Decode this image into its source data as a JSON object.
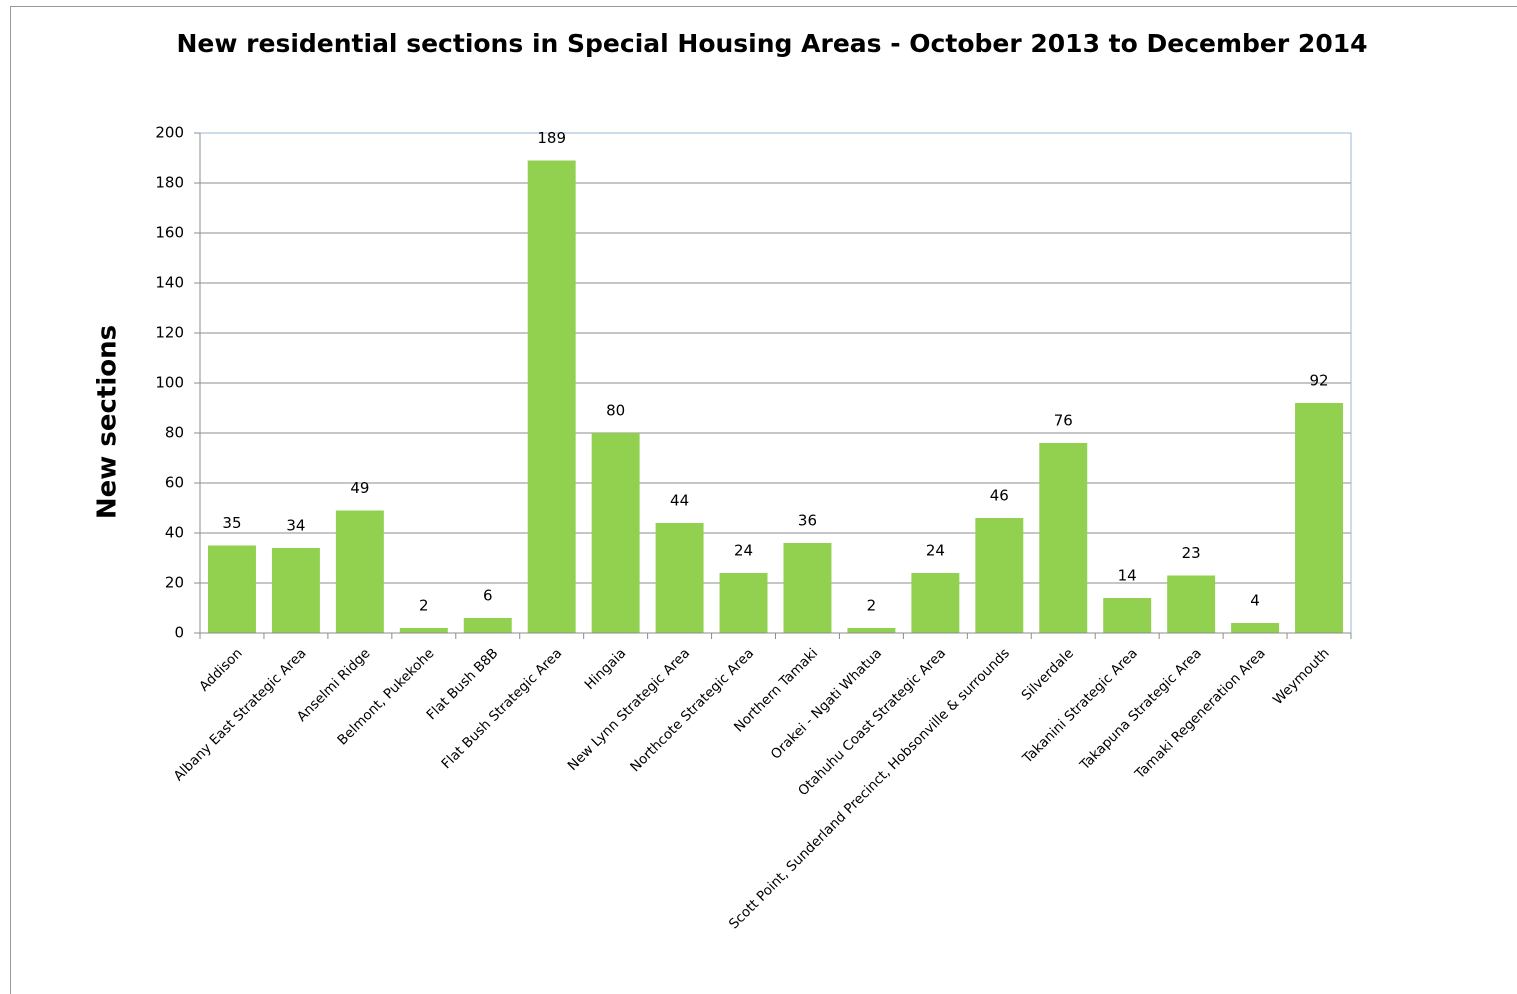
{
  "chart_data": {
    "type": "bar",
    "title": "New residential sections in Special Housing Areas - October 2013 to December 2014",
    "y_label": "New sections",
    "categories": [
      "Addison",
      "Albany East Strategic Area",
      "Anselmi Ridge",
      "Belmont, Pukekohe",
      "Flat Bush B8B",
      "Flat Bush Strategic Area",
      "Hingaia",
      "New Lynn Strategic Area",
      "Northcote Strategic Area",
      "Northern Tamaki",
      "Orakei - Ngati Whatua",
      "Otahuhu Coast Strategic Area",
      "Scott Point, Sunderland Precinct, Hobsonville & surrounds",
      "Silverdale",
      "Takanini Strategic Area",
      "Takapuna Strategic Area",
      "Tamaki Regeneration Area",
      "Weymouth"
    ],
    "values": [
      35,
      34,
      49,
      2,
      6,
      189,
      80,
      44,
      24,
      36,
      2,
      24,
      46,
      76,
      14,
      23,
      4,
      92
    ],
    "color": "#92d050",
    "ylim": [
      0,
      200
    ],
    "yticks": [
      0,
      20,
      40,
      60,
      80,
      100,
      120,
      140,
      160,
      180,
      200
    ],
    "grid": true
  }
}
